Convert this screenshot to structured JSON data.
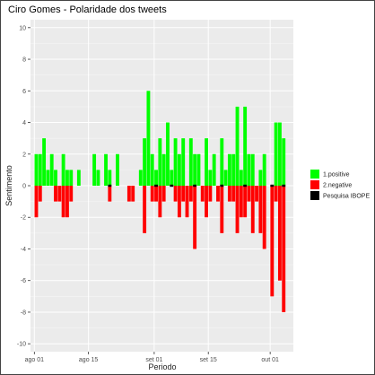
{
  "chart_data": {
    "type": "bar",
    "title": "Ciro Gomes - Polaridade dos tweets",
    "xlabel": "Periodo",
    "ylabel": "Sentimento",
    "ylim": [
      -10.5,
      10.5
    ],
    "y_ticks": [
      -10,
      -8,
      -6,
      -4,
      -2,
      0,
      2,
      4,
      6,
      8,
      10
    ],
    "x_ticks": [
      {
        "label": "ago 01",
        "date": "2018-08-01"
      },
      {
        "label": "ago 15",
        "date": "2018-08-15"
      },
      {
        "label": "set 01",
        "date": "2018-09-01"
      },
      {
        "label": "set 15",
        "date": "2018-09-15"
      },
      {
        "label": "out 01",
        "date": "2018-10-01"
      }
    ],
    "xlim": [
      "2017-07-31",
      "2017-10-07"
    ],
    "grid": true,
    "legend_position": "right",
    "series": [
      {
        "name": "1.positive",
        "color": "#00ff00",
        "points": [
          {
            "x": "2018-08-01",
            "y": 2
          },
          {
            "x": "2018-08-02",
            "y": 2
          },
          {
            "x": "2018-08-03",
            "y": 3
          },
          {
            "x": "2018-08-04",
            "y": 1
          },
          {
            "x": "2018-08-05",
            "y": 2
          },
          {
            "x": "2018-08-06",
            "y": 1
          },
          {
            "x": "2018-08-08",
            "y": 2
          },
          {
            "x": "2018-08-09",
            "y": 1
          },
          {
            "x": "2018-08-10",
            "y": 1
          },
          {
            "x": "2018-08-12",
            "y": 1
          },
          {
            "x": "2018-08-16",
            "y": 2
          },
          {
            "x": "2018-08-17",
            "y": 1
          },
          {
            "x": "2018-08-19",
            "y": 2
          },
          {
            "x": "2018-08-20",
            "y": 1
          },
          {
            "x": "2018-08-22",
            "y": 2
          },
          {
            "x": "2018-08-28",
            "y": 1
          },
          {
            "x": "2018-08-29",
            "y": 3
          },
          {
            "x": "2018-08-30",
            "y": 6
          },
          {
            "x": "2018-08-31",
            "y": 2
          },
          {
            "x": "2018-09-01",
            "y": 1
          },
          {
            "x": "2018-09-02",
            "y": 3
          },
          {
            "x": "2018-09-03",
            "y": 2
          },
          {
            "x": "2018-09-04",
            "y": 4
          },
          {
            "x": "2018-09-05",
            "y": 1
          },
          {
            "x": "2018-09-06",
            "y": 3
          },
          {
            "x": "2018-09-07",
            "y": 2
          },
          {
            "x": "2018-09-08",
            "y": 3
          },
          {
            "x": "2018-09-10",
            "y": 3
          },
          {
            "x": "2018-09-11",
            "y": 2
          },
          {
            "x": "2018-09-12",
            "y": 2
          },
          {
            "x": "2018-09-14",
            "y": 3
          },
          {
            "x": "2018-09-15",
            "y": 1
          },
          {
            "x": "2018-09-16",
            "y": 2
          },
          {
            "x": "2018-09-18",
            "y": 3
          },
          {
            "x": "2018-09-19",
            "y": 1
          },
          {
            "x": "2018-09-20",
            "y": 2
          },
          {
            "x": "2018-09-21",
            "y": 2
          },
          {
            "x": "2018-09-22",
            "y": 5
          },
          {
            "x": "2018-09-23",
            "y": 1
          },
          {
            "x": "2018-09-24",
            "y": 5
          },
          {
            "x": "2018-09-25",
            "y": 2
          },
          {
            "x": "2018-09-26",
            "y": 2
          },
          {
            "x": "2018-09-28",
            "y": 1
          },
          {
            "x": "2018-09-29",
            "y": 2
          },
          {
            "x": "2018-10-02",
            "y": 4
          },
          {
            "x": "2018-10-03",
            "y": 4
          },
          {
            "x": "2018-10-04",
            "y": 3
          }
        ]
      },
      {
        "name": "2.negative",
        "color": "#ff0000",
        "points": [
          {
            "x": "2018-08-01",
            "y": -2
          },
          {
            "x": "2018-08-02",
            "y": -1
          },
          {
            "x": "2018-08-06",
            "y": -1
          },
          {
            "x": "2018-08-07",
            "y": -1
          },
          {
            "x": "2018-08-08",
            "y": -2
          },
          {
            "x": "2018-08-09",
            "y": -2
          },
          {
            "x": "2018-08-10",
            "y": -1
          },
          {
            "x": "2018-08-20",
            "y": -1
          },
          {
            "x": "2018-08-25",
            "y": -1
          },
          {
            "x": "2018-08-26",
            "y": -1
          },
          {
            "x": "2018-08-29",
            "y": -3
          },
          {
            "x": "2018-08-31",
            "y": -1
          },
          {
            "x": "2018-09-01",
            "y": -1
          },
          {
            "x": "2018-09-02",
            "y": -2
          },
          {
            "x": "2018-09-03",
            "y": -1
          },
          {
            "x": "2018-09-06",
            "y": -1
          },
          {
            "x": "2018-09-07",
            "y": -2
          },
          {
            "x": "2018-09-08",
            "y": -1
          },
          {
            "x": "2018-09-09",
            "y": -2
          },
          {
            "x": "2018-09-10",
            "y": -1
          },
          {
            "x": "2018-09-11",
            "y": -4
          },
          {
            "x": "2018-09-13",
            "y": -1
          },
          {
            "x": "2018-09-14",
            "y": -2
          },
          {
            "x": "2018-09-15",
            "y": -1
          },
          {
            "x": "2018-09-17",
            "y": -1
          },
          {
            "x": "2018-09-18",
            "y": -3
          },
          {
            "x": "2018-09-20",
            "y": -1
          },
          {
            "x": "2018-09-21",
            "y": -1
          },
          {
            "x": "2018-09-22",
            "y": -3
          },
          {
            "x": "2018-09-23",
            "y": -2
          },
          {
            "x": "2018-09-24",
            "y": -2
          },
          {
            "x": "2018-09-25",
            "y": -1
          },
          {
            "x": "2018-09-26",
            "y": -3
          },
          {
            "x": "2018-09-27",
            "y": -1
          },
          {
            "x": "2018-09-28",
            "y": -3
          },
          {
            "x": "2018-09-29",
            "y": -4
          },
          {
            "x": "2018-10-01",
            "y": -7
          },
          {
            "x": "2018-10-02",
            "y": -1
          },
          {
            "x": "2018-10-03",
            "y": -6
          },
          {
            "x": "2018-10-04",
            "y": -8
          }
        ]
      },
      {
        "name": "Pesquisa IBOPE",
        "color": "#000000",
        "points": [
          {
            "x": "2018-08-20",
            "y": 0.1
          },
          {
            "x": "2018-09-01",
            "y": 0.1
          },
          {
            "x": "2018-09-05",
            "y": 0.1
          },
          {
            "x": "2018-09-11",
            "y": 0.1
          },
          {
            "x": "2018-09-18",
            "y": 0.1
          },
          {
            "x": "2018-09-24",
            "y": 0.1
          },
          {
            "x": "2018-10-01",
            "y": 0.1
          },
          {
            "x": "2018-10-04",
            "y": 0.1
          }
        ]
      }
    ]
  }
}
